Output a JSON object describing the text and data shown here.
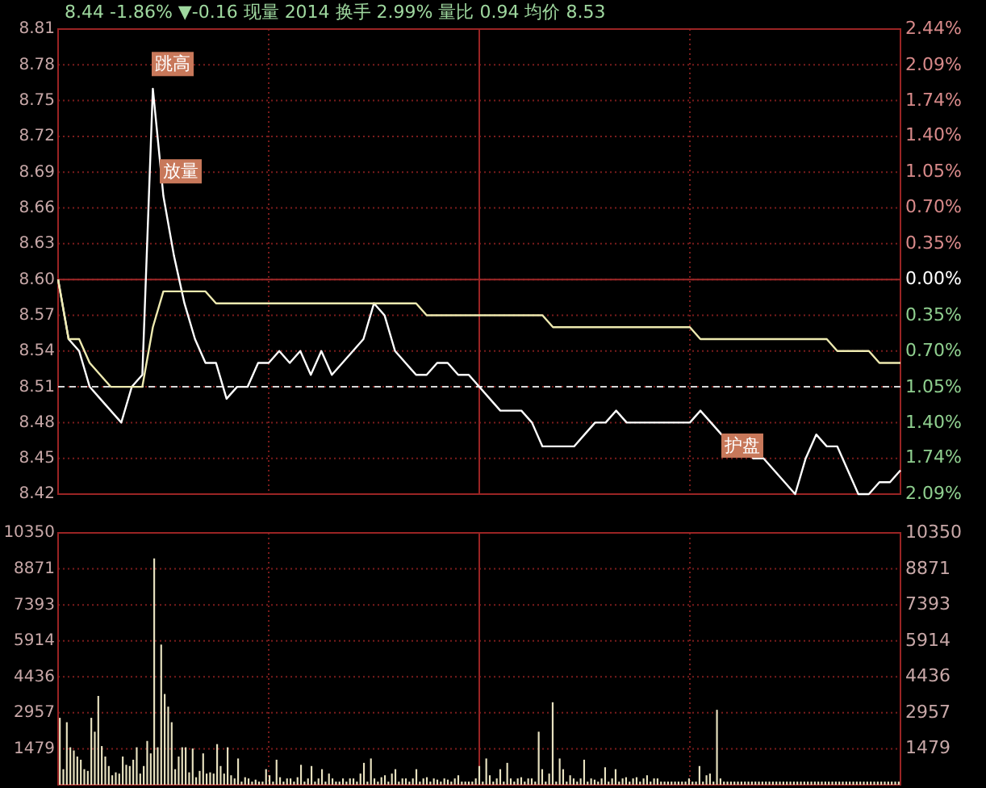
{
  "chart_data": [
    {
      "type": "line",
      "title": "8.44 -1.86% ▼-0.16 现量 2014 换手 2.99% 量比 0.94 均价 8.53",
      "categories": [
        null,
        null,
        null,
        null,
        null,
        null,
        null,
        null,
        null,
        null,
        null,
        null,
        null,
        null,
        null,
        null,
        null,
        null,
        null,
        null,
        null,
        null,
        null,
        null,
        null,
        null,
        null,
        null,
        null,
        null,
        null,
        null,
        null,
        null,
        null,
        null,
        null,
        null,
        null,
        null,
        null,
        null,
        null,
        null,
        null,
        null,
        null,
        null,
        null,
        null,
        null,
        null,
        null,
        null,
        null,
        null,
        null,
        null,
        null,
        null,
        null,
        null,
        null,
        null,
        null,
        null,
        null,
        null,
        null,
        null,
        null,
        null,
        null,
        null,
        null,
        null,
        null,
        null,
        null,
        null,
        null
      ],
      "series": [
        {
          "color": "#ffffff",
          "values": [
            8.6,
            8.55,
            8.54,
            8.51,
            8.5,
            8.49,
            8.48,
            8.51,
            8.52,
            8.76,
            8.67,
            8.62,
            8.58,
            8.55,
            8.53,
            8.53,
            8.5,
            8.51,
            8.51,
            8.53,
            8.53,
            8.54,
            8.53,
            8.54,
            8.52,
            8.54,
            8.52,
            8.53,
            8.54,
            8.55,
            8.58,
            8.57,
            8.54,
            8.53,
            8.52,
            8.52,
            8.53,
            8.53,
            8.52,
            8.52,
            8.51,
            8.5,
            8.49,
            8.49,
            8.49,
            8.48,
            8.46,
            8.46,
            8.46,
            8.46,
            8.47,
            8.48,
            8.48,
            8.49,
            8.48,
            8.48,
            8.48,
            8.48,
            8.48,
            8.48,
            8.48,
            8.49,
            8.48,
            8.47,
            8.47,
            8.47,
            8.45,
            8.45,
            8.44,
            8.43,
            8.42,
            8.45,
            8.47,
            8.46,
            8.46,
            8.44,
            8.42,
            8.42,
            8.43,
            8.43,
            8.44
          ]
        },
        {
          "color": "#eeeab0",
          "values": [
            8.6,
            8.55,
            8.55,
            8.53,
            8.52,
            8.51,
            8.51,
            8.51,
            8.51,
            8.56,
            8.59,
            8.59,
            8.59,
            8.59,
            8.59,
            8.58,
            8.58,
            8.58,
            8.58,
            8.58,
            8.58,
            8.58,
            8.58,
            8.58,
            8.58,
            8.58,
            8.58,
            8.58,
            8.58,
            8.58,
            8.58,
            8.58,
            8.58,
            8.58,
            8.58,
            8.57,
            8.57,
            8.57,
            8.57,
            8.57,
            8.57,
            8.57,
            8.57,
            8.57,
            8.57,
            8.57,
            8.57,
            8.56,
            8.56,
            8.56,
            8.56,
            8.56,
            8.56,
            8.56,
            8.56,
            8.56,
            8.56,
            8.56,
            8.56,
            8.56,
            8.56,
            8.55,
            8.55,
            8.55,
            8.55,
            8.55,
            8.55,
            8.55,
            8.55,
            8.55,
            8.55,
            8.55,
            8.55,
            8.55,
            8.54,
            8.54,
            8.54,
            8.54,
            8.53,
            8.53,
            8.53
          ]
        }
      ],
      "ylim": [
        8.42,
        8.81
      ],
      "yticks": [
        8.42,
        8.45,
        8.48,
        8.51,
        8.54,
        8.57,
        {
          "value": 8.6,
          "label": "8.60"
        },
        8.63,
        8.66,
        8.69,
        8.72,
        8.75,
        8.78,
        8.81
      ],
      "y2lim": [
        -2.09,
        2.44
      ],
      "y2ticks": [
        {
          "value": -2.09,
          "label": "2.09%"
        },
        {
          "value": -1.74,
          "label": "1.74%"
        },
        {
          "value": -1.4,
          "label": "1.40%"
        },
        {
          "value": -1.05,
          "label": "1.05%"
        },
        {
          "value": -0.7,
          "label": "0.70%"
        },
        {
          "value": -0.35,
          "label": "0.35%"
        },
        {
          "value": 0,
          "label": "0.00%"
        },
        {
          "value": 0.35,
          "label": "0.35%"
        },
        {
          "value": 0.7,
          "label": "0.70%"
        },
        {
          "value": 1.05,
          "label": "1.05%"
        },
        {
          "value": 1.4,
          "label": "1.40%"
        },
        {
          "value": 1.74,
          "label": "1.74%"
        },
        {
          "value": 2.09,
          "label": "2.09%"
        },
        {
          "value": 2.44,
          "label": "2.44%"
        }
      ],
      "grid": true,
      "ref_lines": [
        {
          "axis": "y",
          "value": 8.6,
          "color": "#a02828"
        },
        {
          "axis": "y",
          "value": 8.51,
          "color": "#d8d8d8",
          "line_style": "dashed"
        }
      ],
      "annotations": [
        {
          "text": "跳高",
          "y": 8.78
        },
        {
          "text": "放量",
          "y": 8.69
        },
        {
          "text": "护盘",
          "y": 8.46
        }
      ]
    },
    {
      "type": "bar",
      "color": "#e8e2c0",
      "categories": [
        null,
        null,
        null,
        null,
        null,
        null,
        null,
        null,
        null,
        null,
        null,
        null,
        null,
        null,
        null,
        null,
        null,
        null,
        null,
        null,
        null,
        null,
        null,
        null,
        null,
        null,
        null,
        null,
        null,
        null,
        null,
        null,
        null,
        null,
        null,
        null,
        null,
        null,
        null,
        null,
        null,
        null,
        null,
        null,
        null,
        null,
        null,
        null,
        null,
        null,
        null,
        null,
        null,
        null,
        null,
        null,
        null,
        null,
        null,
        null,
        null,
        null,
        null,
        null,
        null,
        null,
        null,
        null,
        null,
        null,
        null,
        null,
        null,
        null,
        null,
        null,
        null,
        null,
        null,
        null,
        null,
        null,
        null,
        null,
        null,
        null,
        null,
        null,
        null,
        null,
        null,
        null,
        null,
        null,
        null,
        null,
        null,
        null,
        null,
        null,
        null,
        null,
        null,
        null,
        null,
        null,
        null,
        null,
        null,
        null,
        null,
        null,
        null,
        null,
        null,
        null,
        null,
        null,
        null,
        null,
        null,
        null,
        null,
        null,
        null,
        null,
        null,
        null,
        null,
        null,
        null,
        null,
        null,
        null,
        null,
        null,
        null,
        null,
        null,
        null,
        null,
        null,
        null,
        null,
        null,
        null,
        null,
        null,
        null,
        null,
        null,
        null,
        null,
        null,
        null,
        null,
        null,
        null,
        null,
        null,
        null,
        null,
        null,
        null,
        null,
        null,
        null,
        null,
        null,
        null,
        null,
        null,
        null,
        null,
        null,
        null,
        null,
        null,
        null,
        null,
        null,
        null,
        null,
        null,
        null,
        null,
        null,
        null,
        null,
        null,
        null,
        null,
        null,
        null,
        null,
        null,
        null,
        null,
        null,
        null,
        null,
        null,
        null,
        null,
        null,
        null,
        null,
        null,
        null,
        null,
        null,
        null,
        null,
        null,
        null,
        null,
        null,
        null,
        null,
        null,
        null,
        null,
        null,
        null,
        null,
        null,
        null,
        null,
        null,
        null,
        null,
        null,
        null,
        null,
        null,
        null,
        null,
        null,
        null,
        null,
        null
      ],
      "values": [
        2750,
        640,
        2570,
        1540,
        1410,
        1160,
        1030,
        640,
        570,
        2750,
        2180,
        3650,
        1590,
        1160,
        770,
        390,
        510,
        460,
        1160,
        820,
        770,
        1030,
        1540,
        460,
        770,
        1800,
        1290,
        9300,
        1540,
        5760,
        3730,
        3210,
        2570,
        640,
        1160,
        1540,
        1540,
        510,
        1490,
        310,
        570,
        1290,
        460,
        510,
        460,
        1670,
        770,
        460,
        1540,
        390,
        260,
        1080,
        130,
        310,
        260,
        130,
        210,
        130,
        130,
        640,
        390,
        130,
        1030,
        310,
        130,
        260,
        260,
        130,
        310,
        820,
        130,
        260,
        770,
        130,
        260,
        640,
        130,
        460,
        260,
        130,
        130,
        260,
        130,
        260,
        260,
        130,
        460,
        900,
        130,
        1080,
        260,
        130,
        310,
        390,
        130,
        460,
        640,
        130,
        260,
        260,
        130,
        260,
        640,
        130,
        260,
        310,
        130,
        260,
        210,
        130,
        260,
        210,
        130,
        260,
        390,
        130,
        130,
        130,
        130,
        260,
        770,
        130,
        1080,
        390,
        130,
        260,
        640,
        130,
        900,
        260,
        130,
        260,
        310,
        130,
        260,
        260,
        130,
        2180,
        640,
        130,
        460,
        3390,
        130,
        1080,
        640,
        130,
        390,
        260,
        130,
        260,
        1030,
        130,
        260,
        210,
        130,
        260,
        720,
        130,
        260,
        640,
        130,
        260,
        310,
        130,
        260,
        310,
        130,
        260,
        390,
        130,
        260,
        260,
        130,
        130,
        130,
        130,
        130,
        130,
        130,
        130,
        260,
        130,
        130,
        770,
        130,
        390,
        460,
        130,
        3080,
        260,
        130,
        130,
        130,
        130,
        130,
        130,
        130,
        130,
        130,
        130,
        130,
        130,
        130,
        130,
        130,
        130,
        130,
        130,
        130,
        130,
        130,
        130,
        130,
        130,
        130,
        130,
        130,
        130,
        130,
        130,
        130,
        130,
        130,
        130,
        130,
        130,
        130,
        130,
        130,
        130,
        130,
        130,
        130,
        130,
        130,
        130,
        130,
        130,
        130,
        130,
        130
      ],
      "ylim": [
        0,
        10350
      ],
      "yticks": [
        1479,
        2957,
        4436,
        5914,
        7393,
        8871,
        10350
      ],
      "y2lim": [
        0,
        10350
      ],
      "y2ticks": [
        1479,
        2957,
        4436,
        5914,
        7393,
        8871,
        10350
      ],
      "grid": true
    }
  ]
}
